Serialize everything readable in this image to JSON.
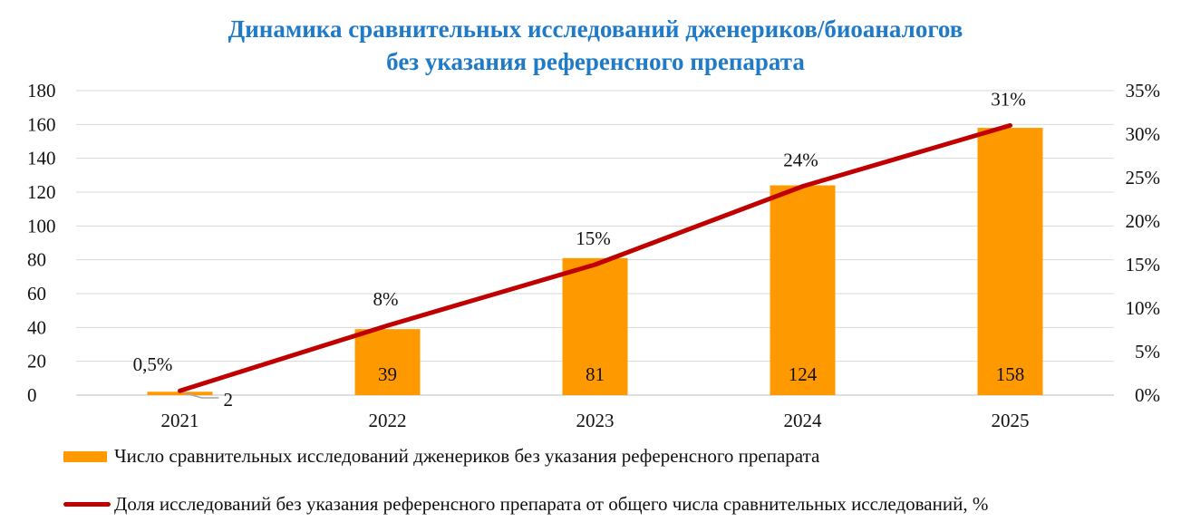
{
  "chart_data": {
    "type": "bar+line",
    "title": [
      "Динамика сравнительных исследований дженериков/биоаналогов",
      "без указания референсного препарата"
    ],
    "categories": [
      "2021",
      "2022",
      "2023",
      "2024",
      "2025"
    ],
    "series": [
      {
        "name": "Число сравнительных исследований дженериков без указания референсного препарата",
        "type": "bar",
        "axis": "left",
        "color": "#ff9900",
        "values": [
          2,
          39,
          81,
          124,
          158
        ],
        "labels": [
          "2",
          "39",
          "81",
          "124",
          "158"
        ]
      },
      {
        "name": "Доля исследований без указания референсного препарата от общего числа сравнительных исследований, %",
        "type": "line",
        "axis": "right",
        "color": "#c00000",
        "values": [
          0.5,
          8,
          15,
          24,
          31
        ],
        "labels": [
          "0,5%",
          "8%",
          "15%",
          "24%",
          "31%"
        ]
      }
    ],
    "y_left": {
      "min": 0,
      "max": 180,
      "ticks": [
        "0",
        "20",
        "40",
        "60",
        "80",
        "100",
        "120",
        "140",
        "160",
        "180"
      ]
    },
    "y_right": {
      "min": 0,
      "max": 35,
      "ticks": [
        "0%",
        "5%",
        "10%",
        "15%",
        "20%",
        "25%",
        "30%",
        "35%"
      ]
    },
    "grid": true,
    "legend_position": "bottom"
  }
}
